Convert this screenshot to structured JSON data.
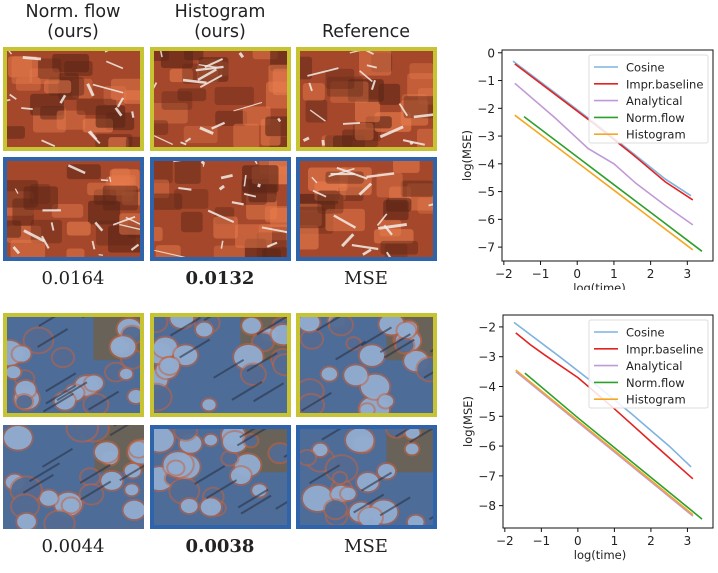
{
  "columns": [
    "Norm. flow\n(ours)",
    "Histogram\n(ours)",
    "Reference"
  ],
  "column_headers": [
    {
      "line1": "Norm. flow",
      "line2": "(ours)"
    },
    {
      "line1": "Histogram",
      "line2": "(ours)"
    },
    {
      "line1": "Reference",
      "line2": ""
    }
  ],
  "rows": [
    {
      "name": "leather-red",
      "mse_values": [
        "0.0164",
        "0.0132",
        "MSE"
      ],
      "best_index": 1,
      "palette": {
        "base": "#a4472a",
        "light": "#e87c4d",
        "dark": "#5d2617",
        "highlight": "#f3ede8"
      }
    },
    {
      "name": "leather-blue",
      "mse_values": [
        "0.0044",
        "0.0038",
        "MSE"
      ],
      "best_index": 1,
      "palette": {
        "base": "#4d6c97",
        "light": "#8fb0d8",
        "dark": "#2a3346",
        "highlight": "#c4623f"
      }
    }
  ],
  "colors": {
    "yellow_border": "#c6c432",
    "blue_border": "#2f64ab"
  },
  "chart_data": [
    {
      "type": "line",
      "xlabel": "log(time)",
      "ylabel": "log(MSE)",
      "xlim": [
        -2.05,
        3.7
      ],
      "ylim": [
        -7.5,
        0.1
      ],
      "xticks": [
        -2,
        -1,
        0,
        1,
        2,
        3
      ],
      "yticks": [
        0,
        -1,
        -2,
        -3,
        -4,
        -5,
        -6,
        -7
      ],
      "xtick_labels": [
        "−2",
        "−1",
        "0",
        "1",
        "2",
        "3"
      ],
      "ytick_labels": [
        "0",
        "−1",
        "−2",
        "−3",
        "−4",
        "−5",
        "−6",
        "−7"
      ],
      "legend_position": "top-right",
      "series": [
        {
          "name": "Cosine",
          "color": "#7fb3e0",
          "x": [
            -1.75,
            -0.5,
            0.5,
            1.5,
            2.4,
            3.1
          ],
          "y": [
            -0.3,
            -1.55,
            -2.55,
            -3.6,
            -4.55,
            -5.15
          ]
        },
        {
          "name": "Impr.baseline",
          "color": "#e32322",
          "x": [
            -1.7,
            -0.5,
            0.5,
            1.5,
            2.4,
            3.15
          ],
          "y": [
            -0.4,
            -1.6,
            -2.6,
            -3.65,
            -4.65,
            -5.3
          ]
        },
        {
          "name": "Analytical",
          "color": "#c09ad6",
          "x": [
            -1.7,
            -0.6,
            0.3,
            1.0,
            1.6,
            2.4,
            3.15
          ],
          "y": [
            -1.1,
            -2.35,
            -3.45,
            -4.0,
            -4.7,
            -5.5,
            -6.2
          ]
        },
        {
          "name": "Norm.flow",
          "color": "#2ca02c",
          "x": [
            -1.45,
            0,
            1,
            2,
            3,
            3.4
          ],
          "y": [
            -2.3,
            -3.75,
            -4.75,
            -5.75,
            -6.75,
            -7.15
          ]
        },
        {
          "name": "Histogram",
          "color": "#f5a623",
          "x": [
            -1.7,
            0,
            1,
            2,
            3,
            3.15
          ],
          "y": [
            -2.25,
            -3.95,
            -4.95,
            -5.95,
            -6.95,
            -7.1
          ]
        }
      ]
    },
    {
      "type": "line",
      "xlabel": "log(time)",
      "ylabel": "log(MSE)",
      "xlim": [
        -2.05,
        3.7
      ],
      "ylim": [
        -8.75,
        -1.6
      ],
      "xticks": [
        -2,
        -1,
        0,
        1,
        2,
        3
      ],
      "yticks": [
        -2,
        -3,
        -4,
        -5,
        -6,
        -7,
        -8
      ],
      "xtick_labels": [
        "−2",
        "−1",
        "0",
        "1",
        "2",
        "3"
      ],
      "ytick_labels": [
        "−2",
        "−3",
        "−4",
        "−5",
        "−6",
        "−7",
        "−8"
      ],
      "legend_position": "top-right",
      "series": [
        {
          "name": "Cosine",
          "color": "#7fb3e0",
          "x": [
            -1.75,
            -0.5,
            0.5,
            1.5,
            2.5,
            3.1
          ],
          "y": [
            -1.85,
            -3.0,
            -3.95,
            -4.95,
            -6.0,
            -6.7
          ]
        },
        {
          "name": "Impr.baseline",
          "color": "#e32322",
          "x": [
            -1.7,
            -1.3,
            -0.9,
            0,
            1,
            2,
            3.15
          ],
          "y": [
            -2.2,
            -2.6,
            -2.95,
            -3.7,
            -4.75,
            -5.85,
            -7.1
          ]
        },
        {
          "name": "Analytical",
          "color": "#c09ad6",
          "x": [
            -1.7,
            0,
            1,
            2,
            3,
            3.15
          ],
          "y": [
            -3.5,
            -5.2,
            -6.2,
            -7.2,
            -8.2,
            -8.35
          ]
        },
        {
          "name": "Norm.flow",
          "color": "#2ca02c",
          "x": [
            -1.45,
            0,
            1,
            2,
            3,
            3.4
          ],
          "y": [
            -3.55,
            -5.05,
            -6.05,
            -7.05,
            -8.05,
            -8.45
          ]
        },
        {
          "name": "Histogram",
          "color": "#f5a623",
          "x": [
            -1.7,
            0,
            1,
            2,
            3,
            3.15
          ],
          "y": [
            -3.45,
            -5.15,
            -6.15,
            -7.15,
            -8.15,
            -8.3
          ]
        }
      ]
    }
  ]
}
